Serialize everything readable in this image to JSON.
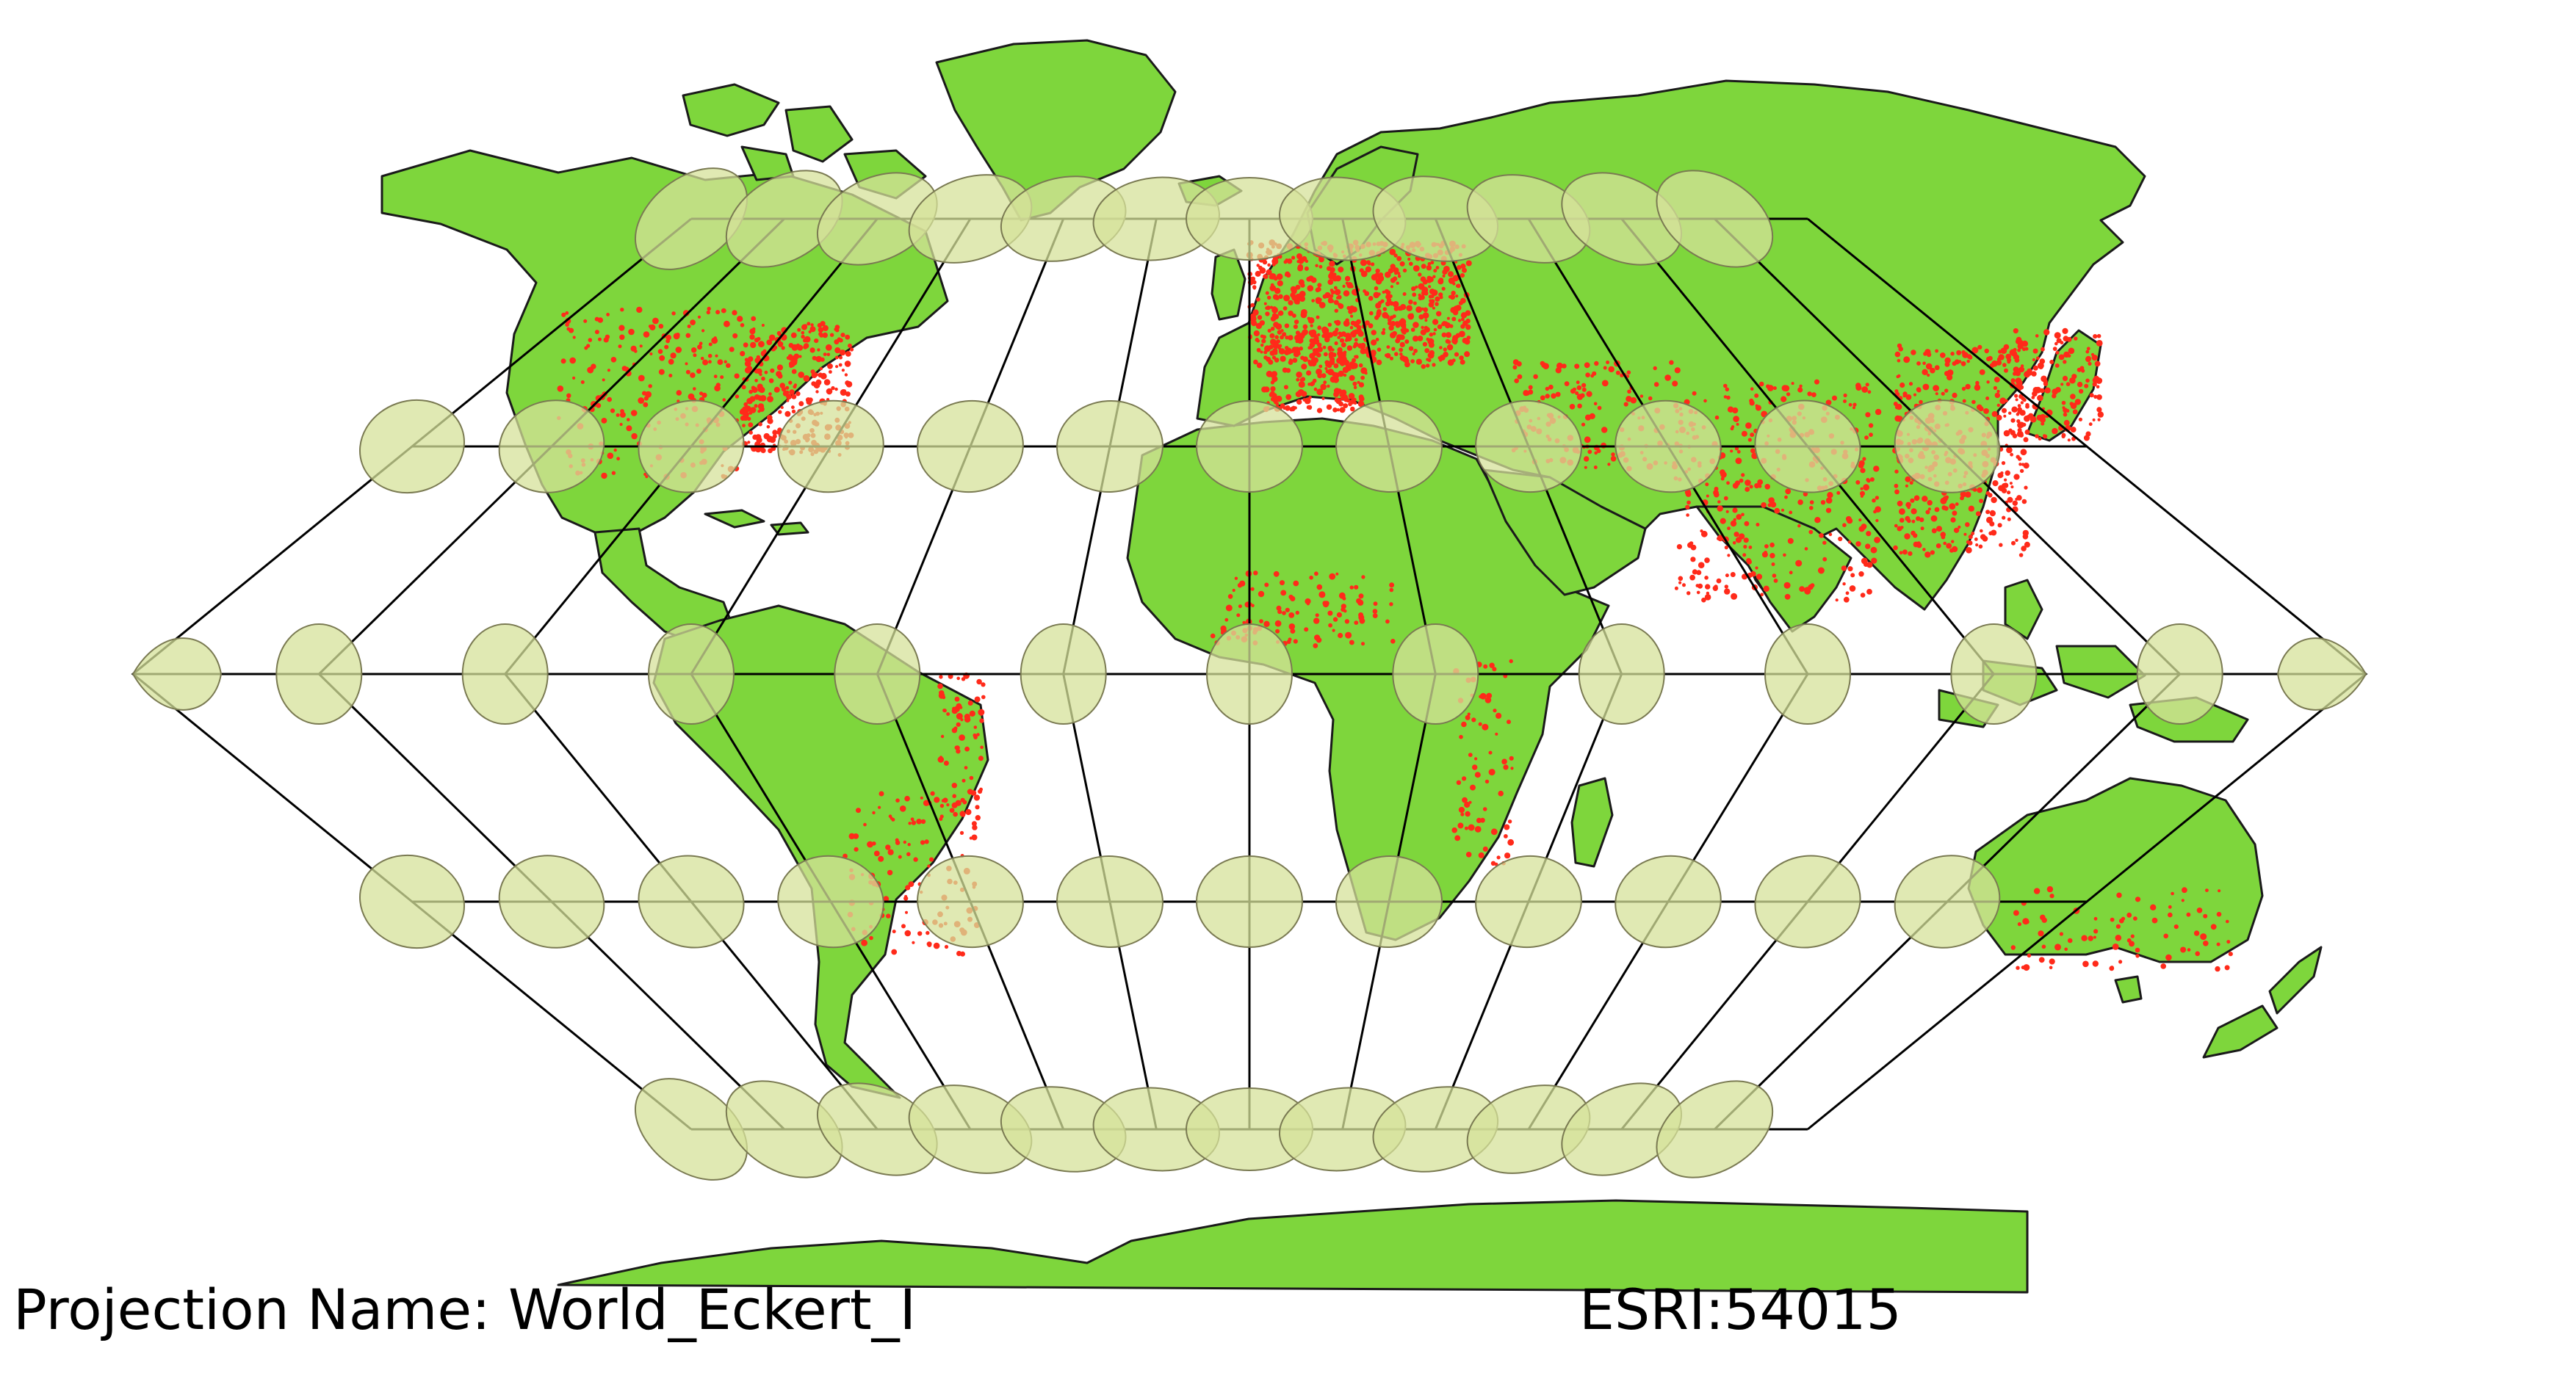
{
  "projection_label": "Projection Name: World_Eckert_I",
  "projection_code": "ESRI:54015",
  "colors": {
    "land": "#7ed63c",
    "coastline": "#1a1a1a",
    "populated_places": "#ff2a1a",
    "graticule": "#000000",
    "indicatrix_fill": "#d6e29a",
    "indicatrix_stroke": "#7a7a52",
    "background": "#ffffff"
  }
}
